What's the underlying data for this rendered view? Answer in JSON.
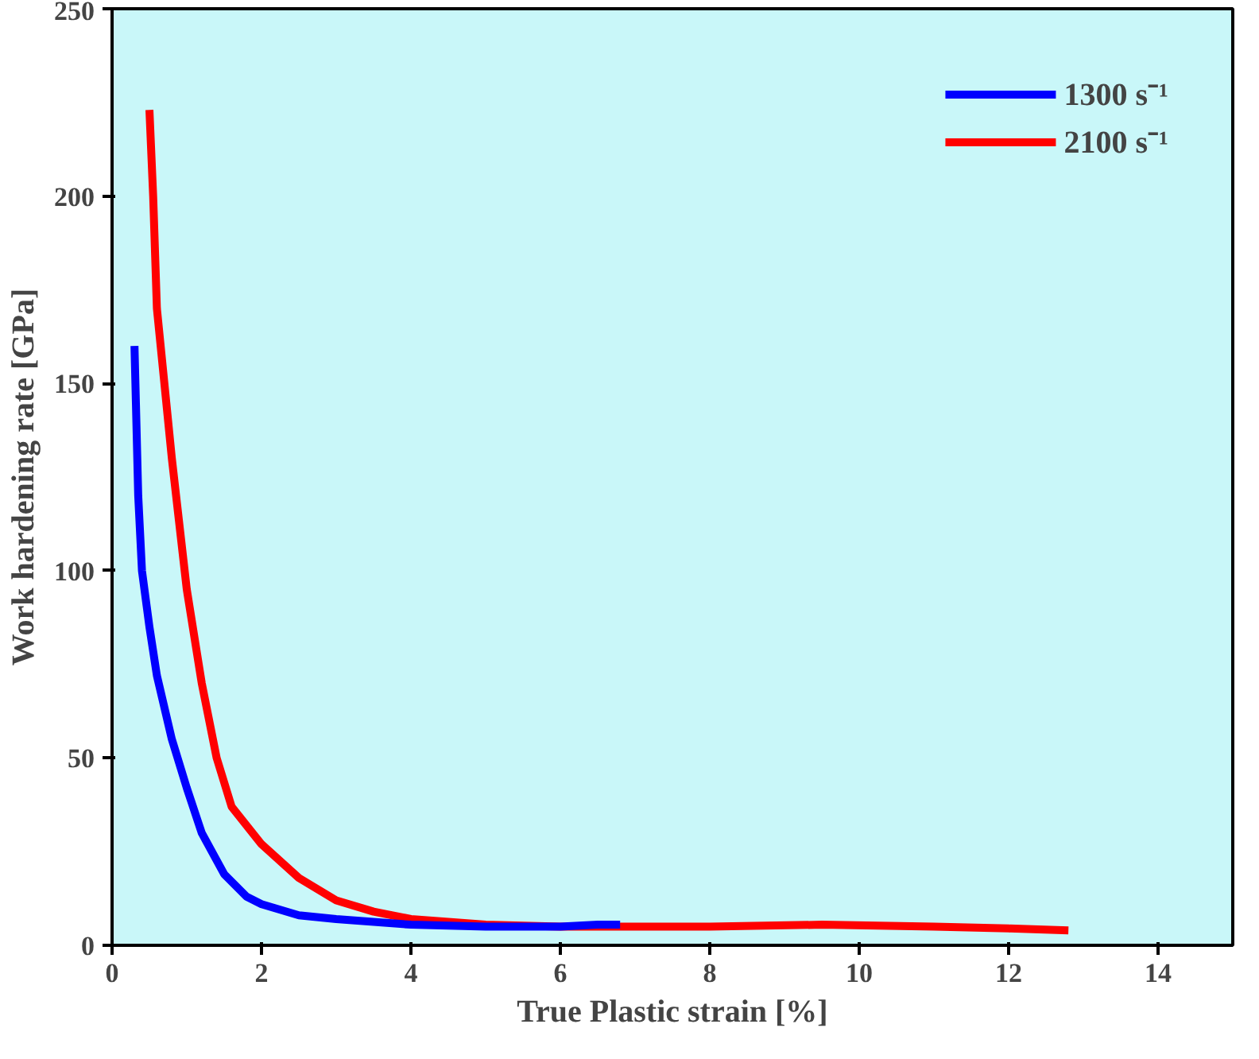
{
  "chart_data": {
    "type": "line",
    "xlabel": "True Plastic strain [%]",
    "ylabel": "Work hardening rate [GPa]",
    "xlim": [
      0,
      15
    ],
    "ylim": [
      0,
      250
    ],
    "xticks": [
      0,
      2,
      4,
      6,
      8,
      10,
      12,
      14
    ],
    "yticks": [
      0,
      50,
      100,
      150,
      200,
      250
    ],
    "grid": false,
    "legend": "top right",
    "marker": "none",
    "line_style": "solid",
    "series": [
      {
        "name": "1300 s⁻¹",
        "color": "#0000ff",
        "x": [
          0.3,
          0.35,
          0.4,
          0.5,
          0.6,
          0.8,
          1.0,
          1.2,
          1.5,
          1.8,
          2.0,
          2.5,
          3,
          4,
          5,
          6,
          6.5,
          6.8
        ],
        "values": [
          160,
          120,
          100,
          85,
          72,
          55,
          42,
          30,
          19,
          13,
          11,
          8,
          7,
          5.5,
          5,
          5,
          5.5,
          5.5
        ]
      },
      {
        "name": "2100 s⁻¹",
        "color": "#ff0000",
        "x": [
          0.5,
          0.55,
          0.6,
          0.8,
          1.0,
          1.2,
          1.4,
          1.6,
          2,
          2.5,
          3,
          3.5,
          4,
          5,
          6,
          8,
          9.5,
          11,
          12,
          12.8
        ],
        "values": [
          223,
          200,
          170,
          130,
          95,
          70,
          50,
          37,
          27,
          18,
          12,
          9,
          7,
          5.5,
          5,
          5,
          5.5,
          5,
          4.5,
          4
        ]
      }
    ]
  }
}
